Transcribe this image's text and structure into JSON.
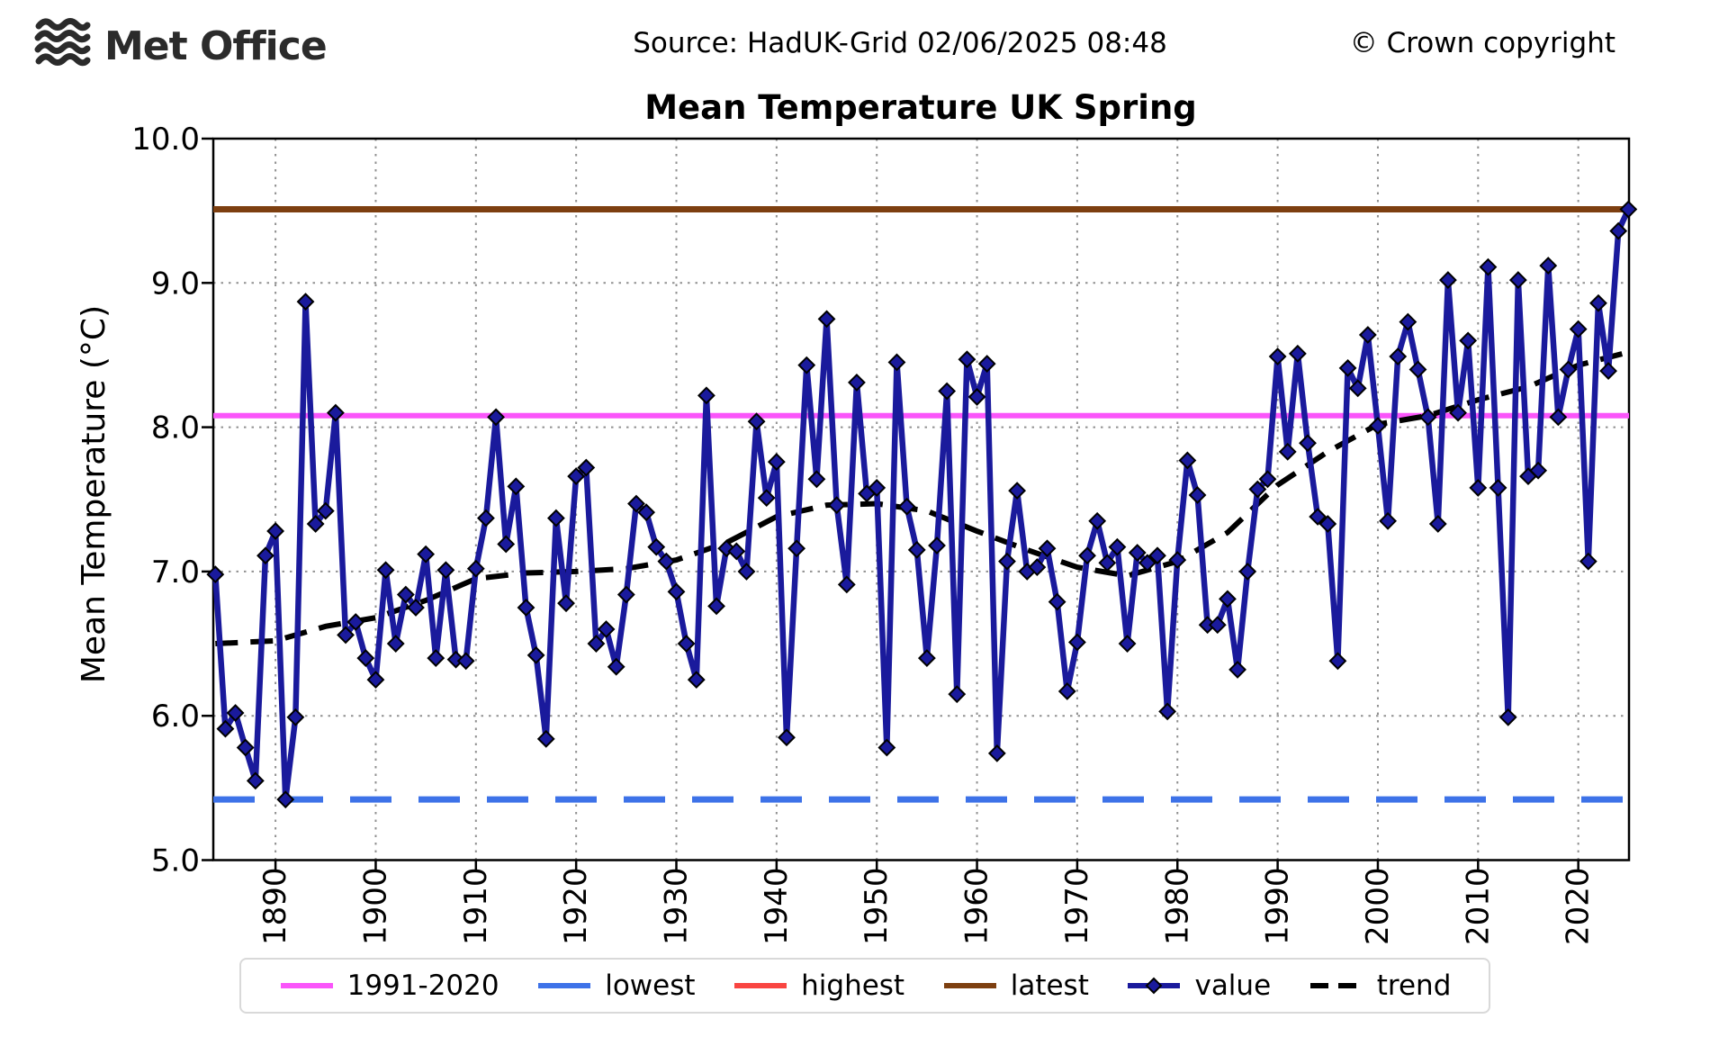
{
  "header": {
    "logo_text": "Met Office",
    "source": "Source: HadUK-Grid 02/06/2025 08:48",
    "copyright": "© Crown copyright"
  },
  "colors": {
    "value": "#1a1a9c",
    "trend": "#000000",
    "average_1991_2020": "#fa55fa",
    "lowest": "#3d72e8",
    "highest": "#f94541",
    "latest": "#7d3f10",
    "grid": "#909090"
  },
  "legend": {
    "items": [
      {
        "label": "1991-2020",
        "style": "solid",
        "color": "#fa55fa"
      },
      {
        "label": "lowest",
        "style": "solid",
        "color": "#3d72e8"
      },
      {
        "label": "highest",
        "style": "solid",
        "color": "#f94541"
      },
      {
        "label": "latest",
        "style": "solid",
        "color": "#7d3f10"
      },
      {
        "label": "value",
        "style": "marker",
        "color": "#1a1a9c"
      },
      {
        "label": "trend",
        "style": "dashed",
        "color": "#000000"
      }
    ]
  },
  "chart_data": {
    "type": "line",
    "title": "Mean Temperature UK Spring",
    "xlabel": "",
    "ylabel": "Mean Temperature (°C)",
    "ylim": [
      5.0,
      10.0
    ],
    "xlim": [
      1884,
      2025
    ],
    "grid": true,
    "legend_position": "bottom",
    "x_ticks": [
      1890,
      1900,
      1910,
      1920,
      1930,
      1940,
      1950,
      1960,
      1970,
      1980,
      1990,
      2000,
      2010,
      2020
    ],
    "y_ticks": [
      "10.0",
      "9.0",
      "8.0",
      "7.0",
      "6.0",
      "5.0"
    ],
    "reference_lines": {
      "average_1991_2020": 8.08,
      "lowest": 5.42,
      "highest": 9.51,
      "latest": 9.51
    },
    "series": {
      "name": "value",
      "start_year": 1884,
      "end_year": 2025,
      "values": [
        6.98,
        5.91,
        6.02,
        5.78,
        5.55,
        7.11,
        7.28,
        5.42,
        5.99,
        8.87,
        7.33,
        7.42,
        8.1,
        6.56,
        6.65,
        6.4,
        6.25,
        7.01,
        6.5,
        6.84,
        6.75,
        7.12,
        6.4,
        7.01,
        6.39,
        6.38,
        7.02,
        7.37,
        8.07,
        7.19,
        7.59,
        6.75,
        6.42,
        5.84,
        7.37,
        6.78,
        7.66,
        7.72,
        6.5,
        6.6,
        6.34,
        6.84,
        7.47,
        7.41,
        7.17,
        7.07,
        6.86,
        6.5,
        6.25,
        8.22,
        6.76,
        7.16,
        7.14,
        7.0,
        8.04,
        7.51,
        7.76,
        5.85,
        7.16,
        8.43,
        7.64,
        8.75,
        7.46,
        6.91,
        8.31,
        7.54,
        7.58,
        5.78,
        8.45,
        7.45,
        7.15,
        6.4,
        7.18,
        8.25,
        6.15,
        8.47,
        8.21,
        8.44,
        5.74,
        7.07,
        7.56,
        7.0,
        7.03,
        7.16,
        6.79,
        6.17,
        6.51,
        7.11,
        7.35,
        7.06,
        7.17,
        6.5,
        7.13,
        7.06,
        7.11,
        6.03,
        7.08,
        7.77,
        7.53,
        6.63,
        6.63,
        6.81,
        6.32,
        7.0,
        7.57,
        7.64,
        8.49,
        7.83,
        8.51,
        7.89,
        7.38,
        7.33,
        6.38,
        8.41,
        8.27,
        8.64,
        8.01,
        7.35,
        8.49,
        8.73,
        8.4,
        8.07,
        7.33,
        9.02,
        8.1,
        8.6,
        7.58,
        9.11,
        7.58,
        5.99,
        9.02,
        7.66,
        7.7,
        9.12,
        8.07,
        8.4,
        8.68,
        7.07,
        8.86,
        8.39,
        9.36,
        9.51
      ]
    },
    "trend": {
      "name": "trend",
      "points": [
        [
          1884,
          6.5
        ],
        [
          1890,
          6.52
        ],
        [
          1895,
          6.62
        ],
        [
          1900,
          6.68
        ],
        [
          1905,
          6.8
        ],
        [
          1910,
          6.95
        ],
        [
          1915,
          6.99
        ],
        [
          1920,
          7.0
        ],
        [
          1925,
          7.02
        ],
        [
          1930,
          7.08
        ],
        [
          1935,
          7.2
        ],
        [
          1940,
          7.38
        ],
        [
          1945,
          7.46
        ],
        [
          1950,
          7.47
        ],
        [
          1955,
          7.42
        ],
        [
          1960,
          7.28
        ],
        [
          1965,
          7.15
        ],
        [
          1970,
          7.03
        ],
        [
          1975,
          6.97
        ],
        [
          1980,
          7.07
        ],
        [
          1985,
          7.27
        ],
        [
          1990,
          7.6
        ],
        [
          1995,
          7.83
        ],
        [
          2000,
          8.02
        ],
        [
          2005,
          8.08
        ],
        [
          2010,
          8.19
        ],
        [
          2015,
          8.28
        ],
        [
          2020,
          8.43
        ],
        [
          2025,
          8.52
        ]
      ]
    }
  }
}
